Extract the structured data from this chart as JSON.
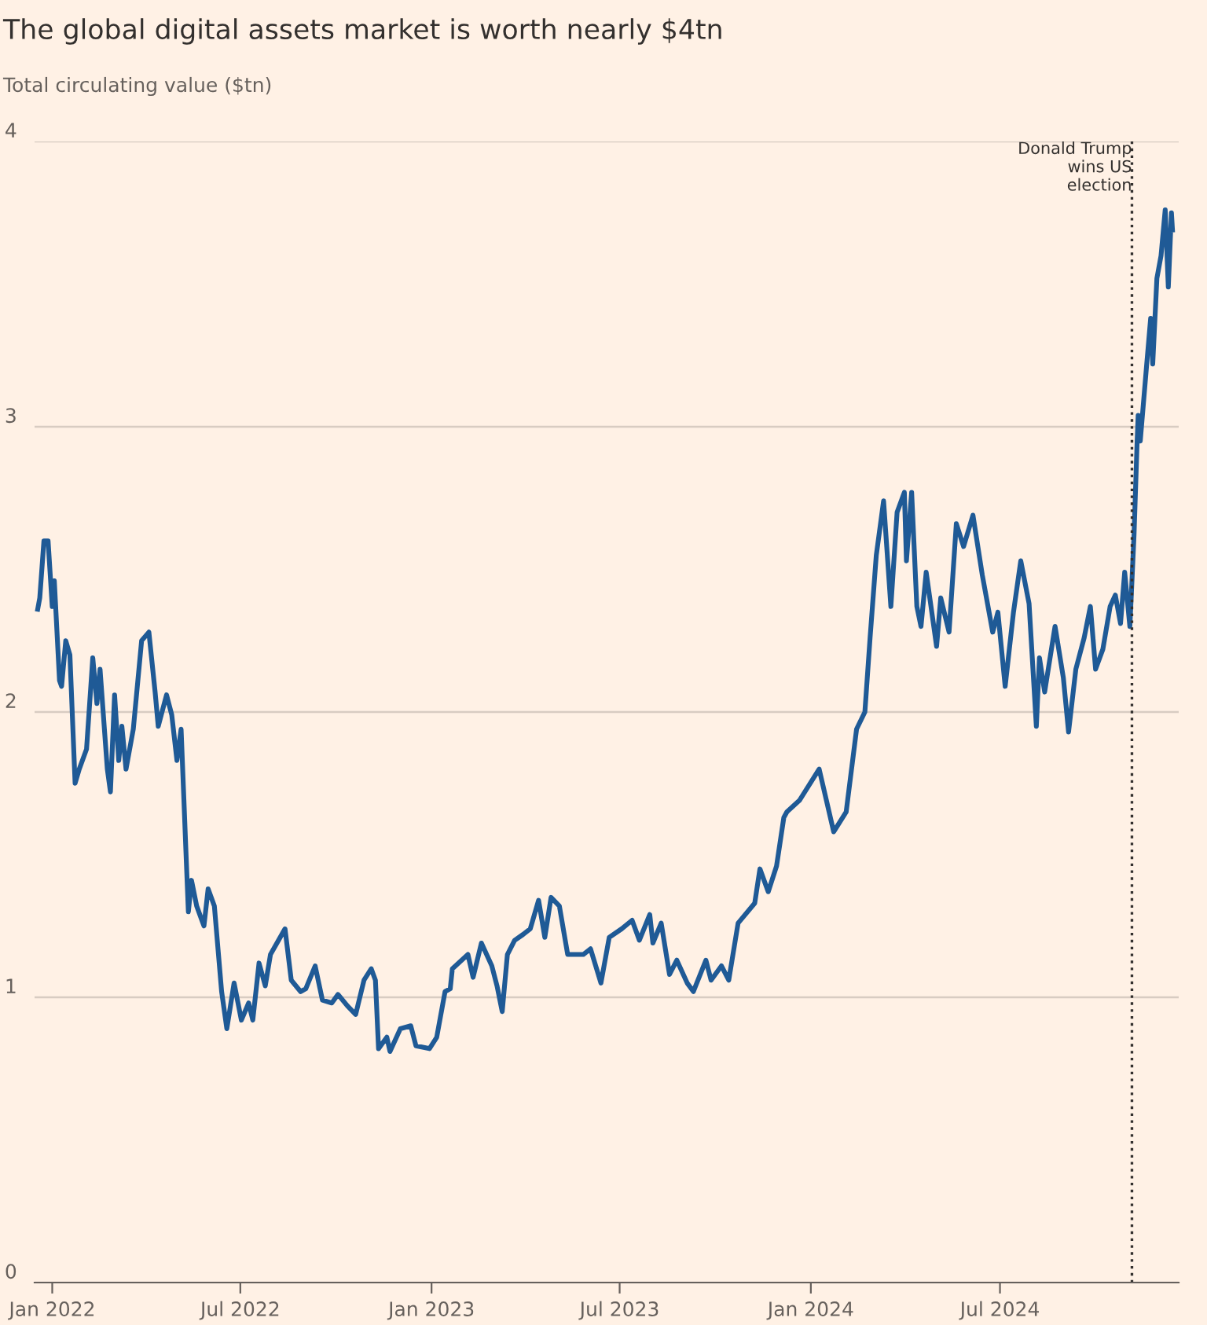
{
  "chart_data": {
    "type": "line",
    "title": "The global digital assets market is worth nearly $4tn",
    "subtitle": "Total circulating value ($tn)",
    "x": [
      "2021-12-18",
      "2021-12-20",
      "2021-12-24",
      "2021-12-28",
      "2022-01-01",
      "2022-01-03",
      "2022-01-08",
      "2022-01-10",
      "2022-01-14",
      "2022-01-18",
      "2022-01-23",
      "2022-01-27",
      "2022-02-03",
      "2022-02-09",
      "2022-02-13",
      "2022-02-16",
      "2022-02-23",
      "2022-02-26",
      "2022-03-02",
      "2022-03-06",
      "2022-03-09",
      "2022-03-13",
      "2022-03-20",
      "2022-03-28",
      "2022-04-04",
      "2022-04-10",
      "2022-04-13",
      "2022-04-21",
      "2022-04-26",
      "2022-05-01",
      "2022-05-05",
      "2022-05-10",
      "2022-05-12",
      "2022-05-15",
      "2022-05-20",
      "2022-05-27",
      "2022-05-31",
      "2022-06-06",
      "2022-06-13",
      "2022-06-18",
      "2022-06-25",
      "2022-07-02",
      "2022-07-09",
      "2022-07-13",
      "2022-07-19",
      "2022-07-25",
      "2022-07-30",
      "2022-08-13",
      "2022-08-19",
      "2022-08-28",
      "2022-09-02",
      "2022-09-11",
      "2022-09-18",
      "2022-09-27",
      "2022-10-03",
      "2022-10-12",
      "2022-10-20",
      "2022-10-28",
      "2022-11-04",
      "2022-11-08",
      "2022-11-11",
      "2022-11-19",
      "2022-11-22",
      "2022-12-02",
      "2022-12-12",
      "2022-12-17",
      "2022-12-30",
      "2023-01-06",
      "2023-01-14",
      "2023-01-19",
      "2023-01-21",
      "2023-02-05",
      "2023-02-10",
      "2023-02-18",
      "2023-02-28",
      "2023-03-05",
      "2023-03-10",
      "2023-03-15",
      "2023-03-22",
      "2023-03-30",
      "2023-04-06",
      "2023-04-14",
      "2023-04-20",
      "2023-04-26",
      "2023-05-04",
      "2023-05-12",
      "2023-05-27",
      "2023-06-03",
      "2023-06-13",
      "2023-06-21",
      "2023-07-03",
      "2023-07-13",
      "2023-07-20",
      "2023-07-30",
      "2023-08-02",
      "2023-08-10",
      "2023-08-18",
      "2023-08-25",
      "2023-09-04",
      "2023-09-10",
      "2023-09-22",
      "2023-09-27",
      "2023-10-07",
      "2023-10-14",
      "2023-10-23",
      "2023-11-08",
      "2023-11-13",
      "2023-11-21",
      "2023-11-29",
      "2023-12-06",
      "2023-12-09",
      "2023-12-21",
      "2024-01-09",
      "2024-01-23",
      "2024-02-04",
      "2024-02-14",
      "2024-02-22",
      "2024-02-27",
      "2024-03-04",
      "2024-03-11",
      "2024-03-18",
      "2024-03-24",
      "2024-03-31",
      "2024-04-02",
      "2024-04-07",
      "2024-04-12",
      "2024-04-16",
      "2024-04-21",
      "2024-05-01",
      "2024-05-05",
      "2024-05-13",
      "2024-05-20",
      "2024-05-27",
      "2024-06-05",
      "2024-06-14",
      "2024-06-24",
      "2024-06-29",
      "2024-07-06",
      "2024-07-14",
      "2024-07-21",
      "2024-07-29",
      "2024-08-05",
      "2024-08-08",
      "2024-08-13",
      "2024-08-23",
      "2024-08-31",
      "2024-09-05",
      "2024-09-12",
      "2024-09-20",
      "2024-09-26",
      "2024-10-01",
      "2024-10-08",
      "2024-10-15",
      "2024-10-20",
      "2024-10-25",
      "2024-10-29",
      "2024-11-03",
      "2024-11-07",
      "2024-11-10",
      "2024-11-11",
      "2024-11-13",
      "2024-11-19",
      "2024-11-23",
      "2024-11-25",
      "2024-11-29",
      "2024-12-03",
      "2024-12-07",
      "2024-12-10",
      "2024-12-13",
      "2024-12-14"
    ],
    "series": [
      {
        "color": "#1f5a96",
        "values": [
          2.36,
          2.4,
          2.6,
          2.6,
          2.37,
          2.46,
          2.11,
          2.09,
          2.25,
          2.2,
          1.75,
          1.8,
          1.87,
          2.19,
          2.03,
          2.15,
          1.8,
          1.72,
          2.06,
          1.83,
          1.95,
          1.8,
          1.94,
          2.25,
          2.28,
          2.07,
          1.95,
          2.06,
          1.99,
          1.83,
          1.94,
          1.48,
          1.3,
          1.41,
          1.32,
          1.25,
          1.38,
          1.32,
          1.02,
          0.89,
          1.05,
          0.92,
          0.98,
          0.92,
          1.12,
          1.04,
          1.15,
          1.24,
          1.06,
          1.02,
          1.03,
          1.11,
          0.99,
          0.98,
          1.01,
          0.97,
          0.94,
          1.06,
          1.1,
          1.06,
          0.82,
          0.86,
          0.81,
          0.89,
          0.9,
          0.83,
          0.82,
          0.86,
          1.02,
          1.03,
          1.1,
          1.15,
          1.07,
          1.19,
          1.11,
          1.04,
          0.95,
          1.15,
          1.2,
          1.22,
          1.24,
          1.34,
          1.21,
          1.35,
          1.32,
          1.15,
          1.15,
          1.17,
          1.05,
          1.21,
          1.24,
          1.27,
          1.2,
          1.29,
          1.19,
          1.26,
          1.08,
          1.13,
          1.05,
          1.02,
          1.13,
          1.06,
          1.11,
          1.06,
          1.26,
          1.33,
          1.45,
          1.37,
          1.46,
          1.63,
          1.65,
          1.69,
          1.8,
          1.58,
          1.65,
          1.94,
          2.0,
          2.26,
          2.55,
          2.74,
          2.37,
          2.7,
          2.77,
          2.53,
          2.77,
          2.37,
          2.3,
          2.49,
          2.23,
          2.4,
          2.28,
          2.66,
          2.58,
          2.69,
          2.48,
          2.28,
          2.35,
          2.09,
          2.35,
          2.53,
          2.38,
          1.95,
          2.19,
          2.07,
          2.3,
          2.12,
          1.93,
          2.15,
          2.26,
          2.37,
          2.15,
          2.22,
          2.37,
          2.41,
          2.31,
          2.49,
          2.3,
          2.62,
          2.95,
          3.04,
          2.95,
          3.21,
          3.38,
          3.22,
          3.52,
          3.6,
          3.76,
          3.49,
          3.75,
          3.69
        ]
      }
    ],
    "xlim": [
      "2021-12-15",
      "2024-12-20"
    ],
    "xticks": [
      {
        "value": "2022-01-01",
        "label": "Jan 2022"
      },
      {
        "value": "2022-07-01",
        "label": "Jul 2022"
      },
      {
        "value": "2023-01-01",
        "label": "Jan 2023"
      },
      {
        "value": "2023-07-01",
        "label": "Jul 2023"
      },
      {
        "value": "2024-01-01",
        "label": "Jan 2024"
      },
      {
        "value": "2024-07-01",
        "label": "Jul 2024"
      }
    ],
    "ylim": [
      0,
      4
    ],
    "yticks": [
      0,
      1,
      2,
      3,
      4
    ],
    "grid": "y",
    "legend": false,
    "line_style": "solid",
    "ref_lines": [
      {
        "axis": "x",
        "value": "2024-11-05",
        "label": "Donald Trump\nwins US\nelection",
        "color": "#33302e",
        "line_style": "dotted"
      }
    ]
  }
}
